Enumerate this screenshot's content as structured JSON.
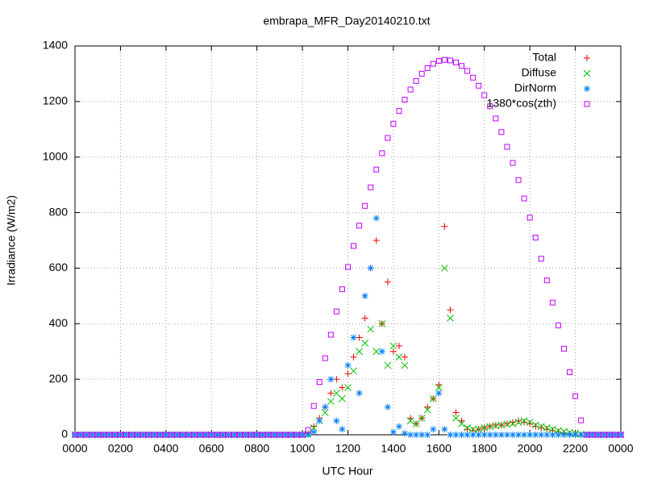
{
  "chart_data": {
    "type": "scatter",
    "title": "embrapa_MFR_Day20140210.txt",
    "x_label": "UTC Hour",
    "y_label": "Irradiance (W/m2)",
    "xlim": [
      0,
      24
    ],
    "ylim": [
      0,
      1400
    ],
    "xticks": [
      {
        "value": 0,
        "label": "0000"
      },
      {
        "value": 2,
        "label": "0200"
      },
      {
        "value": 4,
        "label": "0400"
      },
      {
        "value": 6,
        "label": "0600"
      },
      {
        "value": 8,
        "label": "0800"
      },
      {
        "value": 10,
        "label": "1000"
      },
      {
        "value": 12,
        "label": "1200"
      },
      {
        "value": 14,
        "label": "1400"
      },
      {
        "value": 16,
        "label": "1600"
      },
      {
        "value": 18,
        "label": "1800"
      },
      {
        "value": 20,
        "label": "2000"
      },
      {
        "value": 22,
        "label": "2200"
      },
      {
        "value": 24,
        "label": "0000"
      }
    ],
    "yticks": [
      0,
      200,
      400,
      600,
      800,
      1000,
      1200,
      1400
    ],
    "grid": true,
    "legend": "top-right",
    "x": [
      0,
      0.25,
      0.5,
      0.75,
      1,
      1.25,
      1.5,
      1.75,
      2,
      2.25,
      2.5,
      2.75,
      3,
      3.25,
      3.5,
      3.75,
      4,
      4.25,
      4.5,
      4.75,
      5,
      5.25,
      5.5,
      5.75,
      6,
      6.25,
      6.5,
      6.75,
      7,
      7.25,
      7.5,
      7.75,
      8,
      8.25,
      8.5,
      8.75,
      9,
      9.25,
      9.5,
      9.75,
      10,
      10.25,
      10.5,
      10.75,
      11,
      11.25,
      11.5,
      11.75,
      12,
      12.25,
      12.5,
      12.75,
      13,
      13.25,
      13.5,
      13.75,
      14,
      14.25,
      14.5,
      14.75,
      15,
      15.25,
      15.5,
      15.75,
      16,
      16.25,
      16.5,
      16.75,
      17,
      17.25,
      17.5,
      17.75,
      18,
      18.25,
      18.5,
      18.75,
      19,
      19.25,
      19.5,
      19.75,
      20,
      20.25,
      20.5,
      20.75,
      21,
      21.25,
      21.5,
      21.75,
      22,
      22.25,
      22.5,
      22.75,
      23,
      23.25,
      23.5,
      23.75,
      24
    ],
    "series": [
      {
        "name": "Total",
        "color": "#ff0000",
        "marker": "plus",
        "values": [
          0,
          0,
          0,
          0,
          0,
          0,
          0,
          0,
          0,
          0,
          0,
          0,
          0,
          0,
          0,
          0,
          0,
          0,
          0,
          0,
          0,
          0,
          0,
          0,
          0,
          0,
          0,
          0,
          0,
          0,
          0,
          0,
          0,
          0,
          0,
          0,
          0,
          0,
          0,
          0,
          0,
          5,
          30,
          60,
          100,
          150,
          200,
          170,
          220,
          280,
          350,
          420,
          600,
          700,
          400,
          550,
          300,
          320,
          280,
          60,
          40,
          60,
          100,
          130,
          180,
          750,
          450,
          80,
          50,
          20,
          15,
          20,
          25,
          30,
          35,
          35,
          40,
          45,
          50,
          45,
          40,
          30,
          25,
          20,
          15,
          10,
          5,
          2,
          0,
          0,
          0,
          0,
          0,
          0,
          0,
          0,
          0
        ]
      },
      {
        "name": "Diffuse",
        "color": "#00c000",
        "marker": "cross",
        "values": [
          0,
          0,
          0,
          0,
          0,
          0,
          0,
          0,
          0,
          0,
          0,
          0,
          0,
          0,
          0,
          0,
          0,
          0,
          0,
          0,
          0,
          0,
          0,
          0,
          0,
          0,
          0,
          0,
          0,
          0,
          0,
          0,
          0,
          0,
          0,
          0,
          0,
          0,
          0,
          0,
          0,
          3,
          25,
          50,
          80,
          120,
          150,
          130,
          170,
          230,
          300,
          330,
          380,
          300,
          400,
          250,
          320,
          280,
          250,
          50,
          40,
          60,
          90,
          130,
          170,
          600,
          420,
          60,
          40,
          25,
          20,
          20,
          25,
          30,
          32,
          35,
          38,
          40,
          45,
          50,
          45,
          35,
          30,
          25,
          20,
          15,
          12,
          8,
          5,
          2,
          0,
          0,
          0,
          0,
          0,
          0,
          0
        ]
      },
      {
        "name": "DirNorm",
        "color": "#0080ff",
        "marker": "star",
        "values": [
          0,
          0,
          0,
          0,
          0,
          0,
          0,
          0,
          0,
          0,
          0,
          0,
          0,
          0,
          0,
          0,
          0,
          0,
          0,
          0,
          0,
          0,
          0,
          0,
          0,
          0,
          0,
          0,
          0,
          0,
          0,
          0,
          0,
          0,
          0,
          0,
          0,
          0,
          0,
          0,
          0,
          0,
          10,
          50,
          100,
          200,
          50,
          20,
          250,
          350,
          150,
          500,
          600,
          780,
          300,
          100,
          10,
          30,
          5,
          0,
          0,
          0,
          0,
          20,
          150,
          20,
          0,
          0,
          0,
          0,
          0,
          0,
          0,
          0,
          0,
          0,
          0,
          0,
          0,
          0,
          0,
          0,
          0,
          0,
          0,
          0,
          0,
          0,
          0,
          0,
          0,
          0,
          0,
          0,
          0,
          0,
          0
        ]
      },
      {
        "name": "1380*cos(zth)",
        "color": "#c000ff",
        "marker": "square",
        "values": [
          0,
          0,
          0,
          0,
          0,
          0,
          0,
          0,
          0,
          0,
          0,
          0,
          0,
          0,
          0,
          0,
          0,
          0,
          0,
          0,
          0,
          0,
          0,
          0,
          0,
          0,
          0,
          0,
          0,
          0,
          0,
          0,
          0,
          0,
          0,
          0,
          0,
          0,
          0,
          0,
          0,
          17,
          104,
          190,
          276,
          360,
          444,
          524,
          604,
          680,
          753,
          824,
          891,
          955,
          1014,
          1069,
          1120,
          1166,
          1207,
          1243,
          1274,
          1300,
          1320,
          1336,
          1346,
          1350,
          1348,
          1341,
          1328,
          1310,
          1286,
          1257,
          1223,
          1183,
          1139,
          1090,
          1037,
          979,
          917,
          851,
          782,
          710,
          634,
          556,
          476,
          394,
          310,
          225,
          139,
          52,
          0,
          0,
          0,
          0,
          0,
          0,
          0
        ]
      }
    ]
  }
}
